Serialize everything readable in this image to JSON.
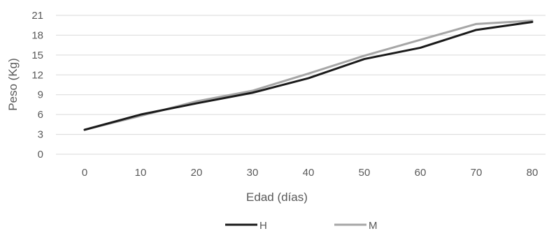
{
  "chart_data": {
    "type": "line",
    "xlabel": "Edad (días)",
    "ylabel": "Peso (Kg)",
    "categories": [
      "0",
      "10",
      "20",
      "30",
      "40",
      "50",
      "60",
      "70",
      "80"
    ],
    "y_ticks": [
      "0",
      "3",
      "6",
      "9",
      "12",
      "15",
      "18",
      "21"
    ],
    "ylim": [
      0,
      21
    ],
    "grid": true,
    "legend_position": "bottom",
    "series": [
      {
        "name": "H",
        "color": "#1a1a1a",
        "values": [
          3.7,
          6.0,
          7.7,
          9.3,
          11.5,
          14.4,
          16.1,
          18.8,
          20.0
        ]
      },
      {
        "name": "M",
        "color": "#a6a6a6",
        "values": [
          3.7,
          5.8,
          8.0,
          9.6,
          12.2,
          14.9,
          17.3,
          19.7,
          20.2
        ]
      }
    ]
  }
}
